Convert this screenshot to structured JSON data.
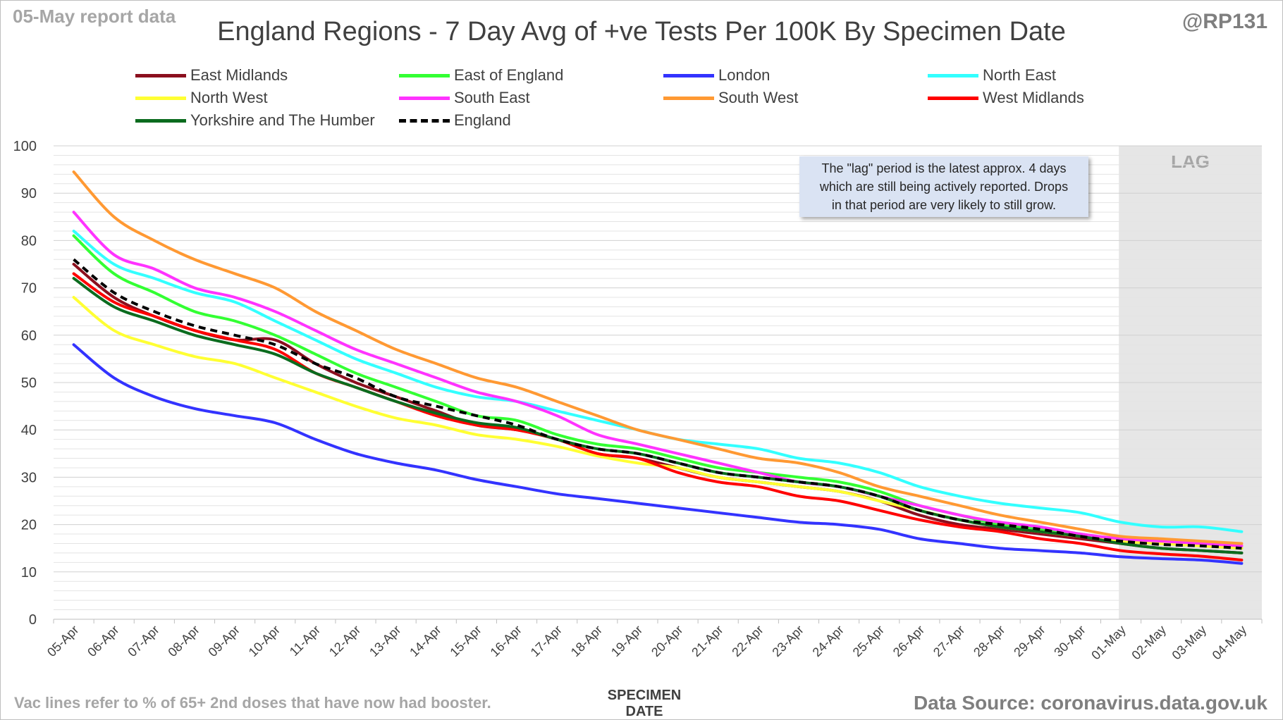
{
  "header": {
    "report_date": "05-May report data",
    "handle": "@RP131",
    "title": "England Regions - 7 Day Avg of +ve Tests Per 100K By Specimen Date"
  },
  "footer": {
    "note": "Vac lines refer to % of 65+ 2nd doses that have now had booster.",
    "source": "Data Source: coronavirus.data.gov.uk"
  },
  "annotation": {
    "lines": [
      "The \"lag\" period is the latest approx. 4 days",
      "which are still being actively reported.  Drops",
      "in that period are very likely to still grow."
    ]
  },
  "chart_data": {
    "type": "line",
    "title": "England Regions - 7 Day Avg of +ve Tests Per 100K By Specimen Date",
    "xlabel": "SPECIMEN DATE",
    "ylabel": "",
    "ylim": [
      0,
      100
    ],
    "yticks": [
      0,
      10,
      20,
      30,
      40,
      50,
      60,
      70,
      80,
      90,
      100
    ],
    "grid": "horizontal minor lines every 2",
    "legend_position": "top",
    "shaded_region": {
      "label": "LAG",
      "from": "01-May",
      "to": "04-May",
      "color": "#e6e6e6"
    },
    "categories": [
      "05-Apr",
      "06-Apr",
      "07-Apr",
      "08-Apr",
      "09-Apr",
      "10-Apr",
      "11-Apr",
      "12-Apr",
      "13-Apr",
      "14-Apr",
      "15-Apr",
      "16-Apr",
      "17-Apr",
      "18-Apr",
      "19-Apr",
      "20-Apr",
      "21-Apr",
      "22-Apr",
      "23-Apr",
      "24-Apr",
      "25-Apr",
      "26-Apr",
      "27-Apr",
      "28-Apr",
      "29-Apr",
      "30-Apr",
      "01-May",
      "02-May",
      "03-May",
      "04-May"
    ],
    "series": [
      {
        "name": "East Midlands",
        "color": "#8b0f1e",
        "dash": false,
        "values": [
          75,
          68,
          64,
          61,
          59,
          59,
          54,
          50,
          47,
          44,
          41,
          40,
          38,
          35,
          34,
          32,
          30,
          29,
          28,
          27,
          25,
          22,
          20,
          19,
          18,
          17,
          16,
          15,
          14.5,
          14
        ]
      },
      {
        "name": "East of England",
        "color": "#33ff33",
        "dash": false,
        "values": [
          81,
          73,
          69,
          65,
          63,
          60,
          56,
          52,
          49,
          46,
          43,
          42,
          39,
          37,
          36,
          34,
          32,
          31,
          30,
          29,
          27,
          24,
          22,
          20,
          19,
          18,
          16.5,
          16,
          15.5,
          15
        ]
      },
      {
        "name": "London",
        "color": "#3333ff",
        "dash": false,
        "values": [
          58,
          51,
          47,
          44.5,
          43,
          41.5,
          38,
          35,
          33,
          31.5,
          29.5,
          28,
          26.5,
          25.5,
          24.5,
          23.5,
          22.5,
          21.5,
          20.5,
          20,
          19,
          17,
          16,
          15,
          14.5,
          14,
          13.2,
          12.8,
          12.5,
          11.8
        ]
      },
      {
        "name": "North East",
        "color": "#33ffff",
        "dash": false,
        "values": [
          82,
          75,
          72,
          69,
          67,
          63,
          59,
          55,
          52,
          49,
          47,
          46,
          44,
          42,
          40,
          38,
          37,
          36,
          34,
          33,
          31,
          28,
          26,
          24.5,
          23.5,
          22.5,
          20.5,
          19.5,
          19.5,
          18.5
        ]
      },
      {
        "name": "North West",
        "color": "#ffff33",
        "dash": false,
        "values": [
          68,
          61,
          58,
          55.5,
          54,
          51,
          48,
          45,
          42.5,
          41,
          39,
          38,
          36.5,
          34.5,
          33,
          32,
          30,
          29,
          28,
          27,
          25,
          23,
          21,
          19.5,
          18.5,
          17.5,
          16.5,
          16,
          15.5,
          15
        ]
      },
      {
        "name": "South East",
        "color": "#ff33ff",
        "dash": false,
        "values": [
          86,
          77,
          74,
          70,
          68,
          65,
          61,
          57,
          54,
          51,
          48,
          46,
          43,
          39,
          37,
          35,
          33,
          31,
          29,
          28,
          26,
          24,
          22,
          20.5,
          19.5,
          18,
          17,
          16.5,
          16,
          15.5
        ]
      },
      {
        "name": "South West",
        "color": "#ff9933",
        "dash": false,
        "values": [
          94.5,
          85,
          80,
          76,
          73,
          70,
          65,
          61,
          57,
          54,
          51,
          49,
          46,
          43,
          40,
          38,
          36,
          34,
          33,
          31,
          28,
          26,
          24,
          22,
          20.5,
          19,
          17.5,
          17,
          16.5,
          16
        ]
      },
      {
        "name": "West Midlands",
        "color": "#ff0000",
        "dash": false,
        "values": [
          73,
          67,
          64,
          61,
          59,
          57,
          52,
          49,
          46,
          43,
          41,
          40,
          38,
          35,
          34,
          31,
          29,
          28,
          26,
          25,
          23,
          21,
          19.5,
          18.5,
          17,
          16,
          14.5,
          13.8,
          13.3,
          12.5
        ]
      },
      {
        "name": "Yorkshire and The Humber",
        "color": "#0b6b1e",
        "dash": false,
        "values": [
          72,
          66,
          63,
          60,
          58,
          56,
          52,
          49,
          46,
          43.5,
          41.5,
          40.5,
          38,
          36,
          35,
          33,
          31,
          30,
          29,
          28,
          26,
          23,
          21,
          19.5,
          18.5,
          17.5,
          16,
          15,
          14.5,
          14
        ]
      },
      {
        "name": "England",
        "color": "#000000",
        "dash": true,
        "values": [
          76,
          69,
          65,
          62,
          60,
          58,
          54,
          51,
          47,
          45,
          43,
          41,
          38,
          36,
          35,
          33,
          31,
          30,
          29,
          28,
          26,
          23,
          21,
          20,
          19,
          17.5,
          16.5,
          15.8,
          15.5,
          15
        ]
      }
    ]
  }
}
